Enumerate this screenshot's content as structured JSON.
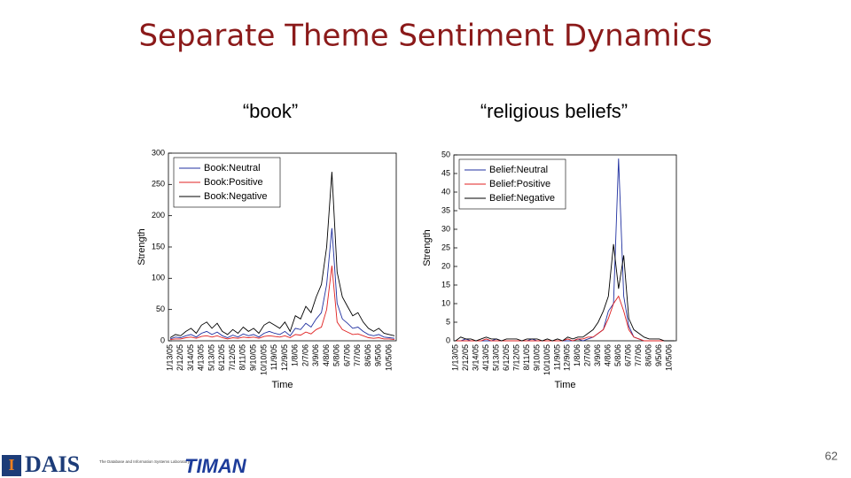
{
  "title": "Separate Theme Sentiment Dynamics",
  "page_number": "62",
  "logos": {
    "dais": "DAIS",
    "dais_caption": "The Database and Information Systems Laboratory",
    "timan": "TIMAN"
  },
  "chart_data": [
    {
      "type": "line",
      "title": "“book”",
      "x_label": "Time",
      "y_label": "Strength",
      "categories": [
        "1/13/05",
        null,
        "2/12/05",
        null,
        "3/14/05",
        null,
        "4/13/05",
        null,
        "5/13/05",
        null,
        "6/12/05",
        null,
        "7/12/05",
        null,
        "8/11/05",
        null,
        "9/10/05",
        null,
        "10/10/05",
        null,
        "11/9/05",
        null,
        "12/9/05",
        null,
        "1/8/06",
        null,
        "2/7/06",
        null,
        "3/9/06",
        null,
        "4/8/06",
        null,
        "5/8/06",
        null,
        "6/7/06",
        null,
        "7/7/06",
        null,
        "8/6/06",
        null,
        "9/5/06",
        null,
        "10/5/06",
        null
      ],
      "series": [
        {
          "name": "Book:Neutral",
          "color": "#2030a0",
          "values": [
            3,
            6,
            5,
            8,
            10,
            6,
            12,
            15,
            10,
            14,
            8,
            5,
            9,
            6,
            11,
            8,
            10,
            6,
            12,
            15,
            12,
            10,
            15,
            8,
            20,
            18,
            28,
            22,
            35,
            45,
            90,
            180,
            60,
            35,
            28,
            20,
            22,
            15,
            10,
            8,
            10,
            6,
            5,
            4
          ]
        },
        {
          "name": "Book:Positive",
          "color": "#e02020",
          "values": [
            2,
            3,
            3,
            5,
            6,
            4,
            7,
            8,
            6,
            8,
            5,
            3,
            5,
            4,
            6,
            5,
            6,
            4,
            7,
            8,
            7,
            6,
            8,
            5,
            10,
            9,
            14,
            11,
            18,
            22,
            50,
            120,
            30,
            18,
            14,
            10,
            11,
            8,
            5,
            4,
            5,
            3,
            3,
            2
          ]
        },
        {
          "name": "Book:Negative",
          "color": "#000000",
          "values": [
            5,
            10,
            8,
            15,
            20,
            12,
            25,
            30,
            20,
            28,
            15,
            10,
            18,
            12,
            22,
            15,
            20,
            12,
            25,
            30,
            25,
            20,
            30,
            15,
            40,
            35,
            55,
            45,
            70,
            90,
            150,
            270,
            110,
            70,
            55,
            40,
            45,
            30,
            20,
            15,
            20,
            12,
            10,
            8
          ]
        }
      ],
      "ylim": [
        0,
        300
      ],
      "yticks": [
        0,
        50,
        100,
        150,
        200,
        250,
        300
      ],
      "grid": false,
      "legend": "upper left"
    },
    {
      "type": "line",
      "title": "“religious beliefs”",
      "x_label": "Time",
      "y_label": "Strength",
      "categories": [
        "1/13/05",
        null,
        "2/12/05",
        null,
        "3/14/05",
        null,
        "4/13/05",
        null,
        "5/13/05",
        null,
        "6/12/05",
        null,
        "7/12/05",
        null,
        "8/11/05",
        null,
        "9/10/05",
        null,
        "10/10/05",
        null,
        "11/9/05",
        null,
        "12/9/05",
        null,
        "1/8/06",
        null,
        "2/7/06",
        null,
        "3/9/06",
        null,
        "4/8/06",
        null,
        "5/8/06",
        null,
        "6/7/06",
        null,
        "7/7/06",
        null,
        "8/6/06",
        null,
        "9/5/06",
        null,
        "10/5/06",
        null
      ],
      "series": [
        {
          "name": "Belief:Neutral",
          "color": "#2030a0",
          "values": [
            0,
            0,
            0.5,
            0,
            0,
            0,
            0,
            0,
            0.5,
            0,
            0,
            0,
            0,
            0,
            0,
            0.5,
            0,
            0,
            0,
            0,
            0,
            0,
            0,
            0,
            0.5,
            0,
            0.5,
            1,
            2,
            3,
            8,
            10,
            49,
            12,
            4,
            1,
            0.5,
            0,
            0,
            0,
            0,
            0,
            0,
            0
          ]
        },
        {
          "name": "Belief:Positive",
          "color": "#e02020",
          "values": [
            0,
            0,
            0,
            0,
            0,
            0,
            0.5,
            0,
            0,
            0,
            0,
            0,
            0,
            0,
            0,
            0,
            0,
            0,
            0,
            0,
            0,
            0,
            0.5,
            0,
            0.5,
            0.5,
            1,
            1,
            2,
            3,
            6,
            10,
            12,
            8,
            3,
            1,
            0.5,
            0,
            0,
            0,
            0,
            0,
            0,
            0
          ]
        },
        {
          "name": "Belief:Negative",
          "color": "#000000",
          "values": [
            0,
            1,
            0.5,
            0.5,
            0,
            0.5,
            1,
            0.5,
            0.5,
            0,
            0.5,
            0.5,
            0.5,
            0,
            0.5,
            0.5,
            0.5,
            0,
            0.5,
            0,
            0.5,
            0,
            1,
            0.5,
            1,
            1,
            2,
            3,
            5,
            8,
            12,
            26,
            14,
            23,
            6,
            3,
            2,
            1,
            0.5,
            0.5,
            0.5,
            0,
            0,
            0
          ]
        }
      ],
      "ylim": [
        0,
        50
      ],
      "yticks": [
        0,
        5,
        10,
        15,
        20,
        25,
        30,
        35,
        40,
        45,
        50
      ],
      "grid": false,
      "legend": "upper left"
    }
  ]
}
